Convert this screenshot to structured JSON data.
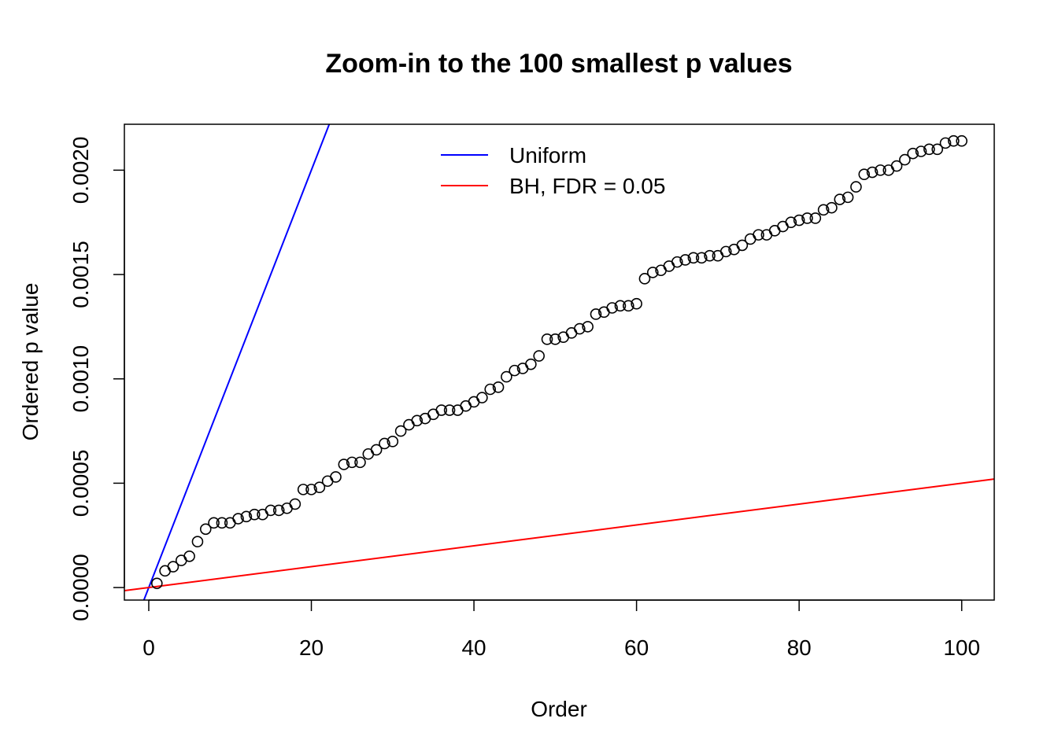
{
  "chart_data": {
    "type": "scatter",
    "title": "Zoom-in to the 100 smallest p values",
    "xlabel": "Order",
    "ylabel": "Ordered p value",
    "xlim": [
      -3,
      104
    ],
    "ylim": [
      -6e-05,
      0.00222
    ],
    "xticks": [
      0,
      20,
      40,
      60,
      80,
      100
    ],
    "xtick_labels": [
      "0",
      "20",
      "40",
      "60",
      "80",
      "100"
    ],
    "yticks": [
      0,
      0.0005,
      0.001,
      0.0015,
      0.002
    ],
    "ytick_labels": [
      "0.0000",
      "0.0005",
      "0.0010",
      "0.0015",
      "0.0020"
    ],
    "grid": false,
    "legend_position": "top-center",
    "series": [
      {
        "name": "Ordered p value",
        "marker": "open-circle",
        "color": "#000000",
        "x": [
          1,
          2,
          3,
          4,
          5,
          6,
          7,
          8,
          9,
          10,
          11,
          12,
          13,
          14,
          15,
          16,
          17,
          18,
          19,
          20,
          21,
          22,
          23,
          24,
          25,
          26,
          27,
          28,
          29,
          30,
          31,
          32,
          33,
          34,
          35,
          36,
          37,
          38,
          39,
          40,
          41,
          42,
          43,
          44,
          45,
          46,
          47,
          48,
          49,
          50,
          51,
          52,
          53,
          54,
          55,
          56,
          57,
          58,
          59,
          60,
          61,
          62,
          63,
          64,
          65,
          66,
          67,
          68,
          69,
          70,
          71,
          72,
          73,
          74,
          75,
          76,
          77,
          78,
          79,
          80,
          81,
          82,
          83,
          84,
          85,
          86,
          87,
          88,
          89,
          90,
          91,
          92,
          93,
          94,
          95,
          96,
          97,
          98,
          99,
          100
        ],
        "y": [
          2e-05,
          8e-05,
          0.0001,
          0.00013,
          0.00015,
          0.00022,
          0.00028,
          0.00031,
          0.00031,
          0.00031,
          0.00033,
          0.00034,
          0.00035,
          0.00035,
          0.00037,
          0.00037,
          0.00038,
          0.0004,
          0.00047,
          0.00047,
          0.00048,
          0.00051,
          0.00053,
          0.00059,
          0.0006,
          0.0006,
          0.00064,
          0.00066,
          0.00069,
          0.0007,
          0.00075,
          0.00078,
          0.0008,
          0.00081,
          0.00083,
          0.00085,
          0.00085,
          0.00085,
          0.00087,
          0.00089,
          0.00091,
          0.00095,
          0.00096,
          0.00101,
          0.00104,
          0.00105,
          0.00107,
          0.00111,
          0.00119,
          0.00119,
          0.0012,
          0.00122,
          0.00124,
          0.00125,
          0.00131,
          0.00132,
          0.00134,
          0.00135,
          0.00135,
          0.00136,
          0.00148,
          0.00151,
          0.00152,
          0.00154,
          0.00156,
          0.00157,
          0.00158,
          0.00158,
          0.00159,
          0.00159,
          0.00161,
          0.00162,
          0.00164,
          0.00167,
          0.00169,
          0.00169,
          0.00171,
          0.00173,
          0.00175,
          0.00176,
          0.00177,
          0.00177,
          0.00181,
          0.00182,
          0.00186,
          0.00187,
          0.00192,
          0.00198,
          0.00199,
          0.002,
          0.002,
          0.00202,
          0.00205,
          0.00208,
          0.00209,
          0.0021,
          0.0021,
          0.00213,
          0.00214,
          0.00214
        ]
      },
      {
        "name": "Uniform",
        "type": "line",
        "color": "#0000ff",
        "slope": 0.0001,
        "intercept": 0
      },
      {
        "name": "BH, FDR = 0.05",
        "type": "line",
        "color": "#ff0000",
        "slope": 5e-06,
        "intercept": 0
      }
    ]
  }
}
